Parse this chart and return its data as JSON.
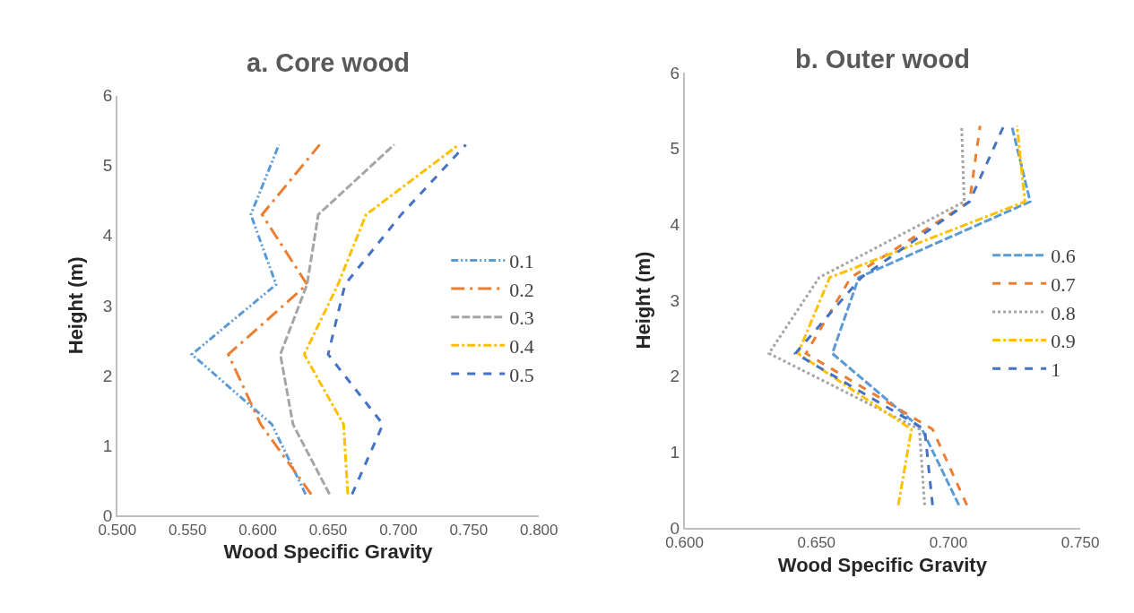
{
  "chart_data": [
    {
      "type": "line",
      "title": "a. Core wood",
      "xlabel": "Wood Specific Gravity",
      "ylabel": "Height (m)",
      "xlim": [
        0.5,
        0.8
      ],
      "xticks": [
        {
          "value": 0.5,
          "label": "0.500"
        },
        {
          "value": 0.55,
          "label": "0.550"
        },
        {
          "value": 0.6,
          "label": "0.600"
        },
        {
          "value": 0.65,
          "label": "0.650"
        },
        {
          "value": 0.7,
          "label": "0.700"
        },
        {
          "value": 0.75,
          "label": "0.750"
        },
        {
          "value": 0.8,
          "label": "0.800"
        }
      ],
      "ylim": [
        0,
        6
      ],
      "yticks": [
        0,
        1,
        2,
        3,
        4,
        5,
        6
      ],
      "grid": false,
      "legend": "right",
      "marker": "none",
      "series": [
        {
          "name": "0.1",
          "color": "#5b9bd5",
          "line_style": "longdashdotdot",
          "x": [
            0.634,
            0.61,
            0.553,
            0.613,
            0.595,
            0.615
          ],
          "values": [
            0.3,
            1.3,
            2.3,
            3.3,
            4.3,
            5.3
          ]
        },
        {
          "name": "0.2",
          "color": "#ed7d31",
          "line_style": "longdashdot",
          "x": [
            0.638,
            0.602,
            0.579,
            0.635,
            0.603,
            0.644
          ],
          "values": [
            0.3,
            1.3,
            2.3,
            3.3,
            4.3,
            5.3
          ]
        },
        {
          "name": "0.3",
          "color": "#a5a5a5",
          "line_style": "longdash",
          "x": [
            0.651,
            0.625,
            0.616,
            0.635,
            0.643,
            0.697
          ],
          "values": [
            0.3,
            1.3,
            2.3,
            3.3,
            4.3,
            5.3
          ]
        },
        {
          "name": "0.4",
          "color": "#ffc000",
          "line_style": "dashdot",
          "x": [
            0.664,
            0.661,
            0.633,
            0.657,
            0.677,
            0.743
          ],
          "values": [
            0.3,
            1.3,
            2.3,
            3.3,
            4.3,
            5.3
          ]
        },
        {
          "name": "0.5",
          "color": "#4472c4",
          "line_style": "dashed",
          "x": [
            0.667,
            0.689,
            0.65,
            0.662,
            0.702,
            0.748
          ],
          "values": [
            0.3,
            1.3,
            2.3,
            3.3,
            4.3,
            5.3
          ]
        }
      ]
    },
    {
      "type": "line",
      "title": "b. Outer wood",
      "xlabel": "Wood Specific Gravity",
      "ylabel": "Height (m)",
      "xlim": [
        0.6,
        0.75
      ],
      "xticks": [
        {
          "value": 0.6,
          "label": "0.600"
        },
        {
          "value": 0.65,
          "label": "0.650"
        },
        {
          "value": 0.7,
          "label": "0.700"
        },
        {
          "value": 0.75,
          "label": "0.750"
        }
      ],
      "ylim": [
        0,
        6
      ],
      "yticks": [
        0,
        1,
        2,
        3,
        4,
        5,
        6
      ],
      "grid": false,
      "legend": "right",
      "marker": "none",
      "series": [
        {
          "name": "0.6",
          "color": "#5b9bd5",
          "line_style": "longdash",
          "x": [
            0.704,
            0.69,
            0.656,
            0.666,
            0.731,
            0.724
          ],
          "values": [
            0.3,
            1.3,
            2.3,
            3.3,
            4.3,
            5.3
          ]
        },
        {
          "name": "0.7",
          "color": "#ed7d31",
          "line_style": "dashed",
          "x": [
            0.707,
            0.694,
            0.646,
            0.663,
            0.708,
            0.712
          ],
          "values": [
            0.3,
            1.3,
            2.3,
            3.3,
            4.3,
            5.3
          ]
        },
        {
          "name": "0.8",
          "color": "#a5a5a5",
          "line_style": "dotted",
          "x": [
            0.691,
            0.689,
            0.632,
            0.651,
            0.706,
            0.705
          ],
          "values": [
            0.3,
            1.3,
            2.3,
            3.3,
            4.3,
            5.3
          ]
        },
        {
          "name": "0.9",
          "color": "#ffc000",
          "line_style": "dashdot",
          "x": [
            0.681,
            0.686,
            0.643,
            0.655,
            0.729,
            0.726
          ],
          "values": [
            0.3,
            1.3,
            2.3,
            3.3,
            4.3,
            5.3
          ]
        },
        {
          "name": "1",
          "color": "#4472c4",
          "line_style": "dashed",
          "x": [
            0.694,
            0.691,
            0.642,
            0.667,
            0.708,
            0.721
          ],
          "values": [
            0.3,
            1.3,
            2.3,
            3.3,
            4.3,
            5.3
          ]
        }
      ]
    }
  ]
}
